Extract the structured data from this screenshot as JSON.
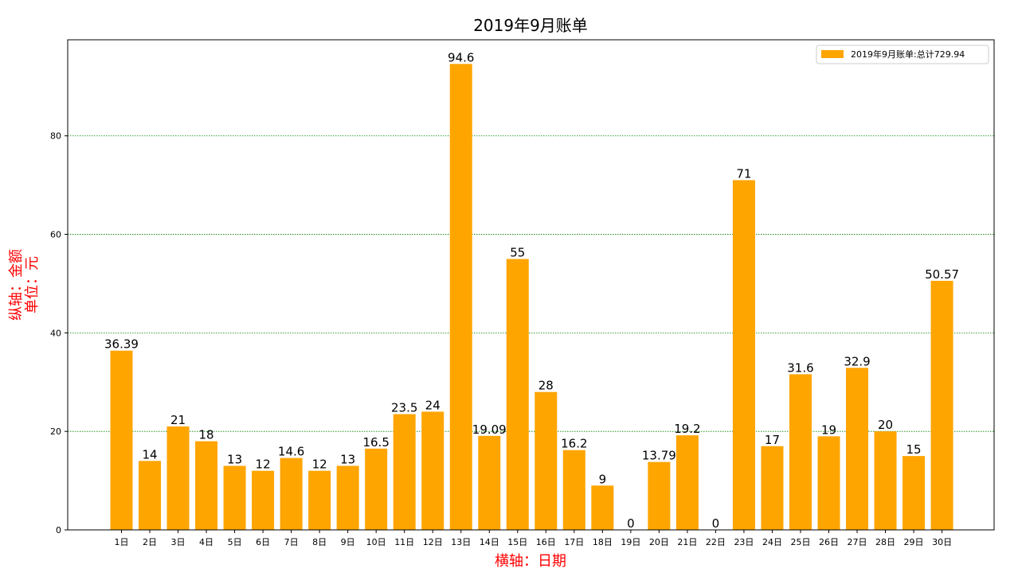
{
  "chart_data": {
    "type": "bar",
    "title": "2019年9月账单",
    "xlabel": "横轴：日期",
    "ylabel_lines": [
      "纵轴：金额",
      "单位：元"
    ],
    "categories": [
      "1日",
      "2日",
      "3日",
      "4日",
      "5日",
      "6日",
      "7日",
      "8日",
      "9日",
      "10日",
      "11日",
      "12日",
      "13日",
      "14日",
      "15日",
      "16日",
      "17日",
      "18日",
      "19日",
      "20日",
      "21日",
      "22日",
      "23日",
      "24日",
      "25日",
      "26日",
      "27日",
      "28日",
      "29日",
      "30日"
    ],
    "values": [
      36.39,
      14,
      21,
      18,
      13,
      12,
      14.6,
      12,
      13,
      16.5,
      23.5,
      24,
      94.6,
      19.09,
      55,
      28,
      16.2,
      9,
      0,
      13.79,
      19.2,
      0,
      71,
      17,
      31.6,
      19,
      32.9,
      20,
      15,
      50.57
    ],
    "value_labels": [
      "36.39",
      "14",
      "21",
      "18",
      "13",
      "12",
      "14.6",
      "12",
      "13",
      "16.5",
      "23.5",
      "24",
      "94.6",
      "19.09",
      "55",
      "28",
      "16.2",
      "9",
      "0",
      "13.79",
      "19.2",
      "0",
      "71",
      "17",
      "31.6",
      "19",
      "32.9",
      "20",
      "15",
      "50.57"
    ],
    "series": [
      {
        "name": "2019年9月账单:总计729.94",
        "color": "#FFA500"
      }
    ],
    "yticks": [
      0,
      20,
      40,
      60,
      80
    ],
    "ylim": [
      0,
      99.5
    ],
    "grid": "horizontal dotted green",
    "grid_color": "#008000",
    "axis_title_color": "#FF0000",
    "legend_position": "top-right"
  }
}
